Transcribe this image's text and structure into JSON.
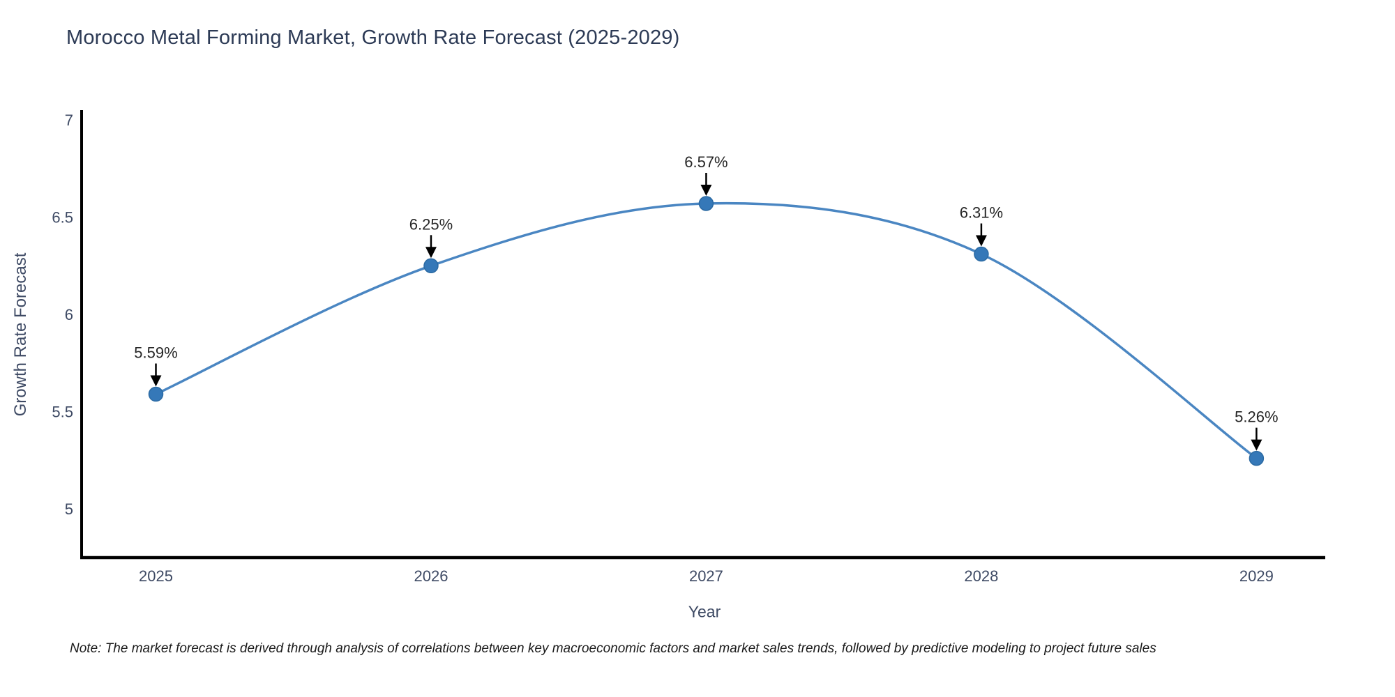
{
  "title": "Morocco Metal Forming Market, Growth Rate Forecast (2025-2029)",
  "note": "Note: The market forecast is derived through analysis of correlations between key macroeconomic factors and market sales trends, followed by predictive modeling to project future sales",
  "chart_data": {
    "type": "line",
    "title": "Morocco Metal Forming Market, Growth Rate Forecast (2025-2029)",
    "x": [
      2025,
      2026,
      2027,
      2028,
      2029
    ],
    "values": [
      5.59,
      6.25,
      6.57,
      6.31,
      5.26
    ],
    "point_labels": [
      "5.59%",
      "6.25%",
      "6.57%",
      "6.31%",
      "5.26%"
    ],
    "xlabel": "Year",
    "ylabel": "Growth Rate Forecast",
    "xticks": [
      2025,
      2026,
      2027,
      2028,
      2029
    ],
    "xtick_labels": [
      "2025",
      "2026",
      "2027",
      "2028",
      "2029"
    ],
    "yticks": [
      5,
      5.5,
      6,
      6.5,
      7
    ],
    "ytick_labels": [
      "5",
      "5.5",
      "6",
      "6.5",
      "7"
    ],
    "xlim": [
      2024.73,
      2029.25
    ],
    "ylim": [
      4.75,
      7.05
    ],
    "line_shape": "spline",
    "grid": false,
    "legend": "none",
    "colors": {
      "line": "#4a86c2",
      "marker": "#3578b8",
      "marker_edge": "#2b6aa3",
      "axis": "#000000",
      "tick_label": "#3e4a64",
      "annotation_text": "#262626",
      "arrow": "#000000",
      "title": "#2c3a55"
    }
  }
}
